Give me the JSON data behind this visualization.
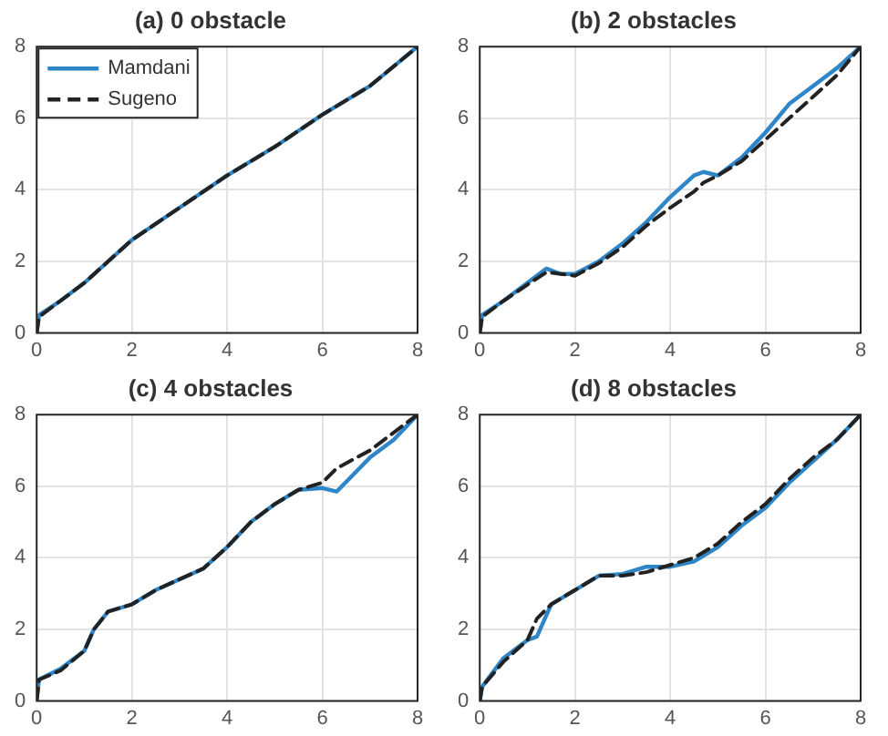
{
  "chart_data": [
    {
      "type": "line",
      "title": "(a) 0 obstacle",
      "x": [
        0,
        0.05,
        0.5,
        1,
        2,
        3,
        4,
        5,
        6,
        7,
        8
      ],
      "xlim": [
        0,
        8
      ],
      "xticks": [
        0,
        2,
        4,
        6,
        8
      ],
      "ylim": [
        0,
        8
      ],
      "yticks": [
        0,
        2,
        4,
        6,
        8
      ],
      "grid": true,
      "legend": "top left",
      "marker": "none",
      "series": [
        {
          "name": "Mamdani",
          "color": "#2e86c8",
          "line_style": "solid",
          "values": [
            0,
            0.5,
            0.9,
            1.4,
            2.6,
            3.5,
            4.4,
            5.2,
            6.1,
            6.9,
            8
          ]
        },
        {
          "name": "Sugeno",
          "color": "#222222",
          "line_style": "dashed",
          "values": [
            0,
            0.45,
            0.9,
            1.4,
            2.6,
            3.5,
            4.4,
            5.2,
            6.1,
            6.9,
            8
          ]
        }
      ]
    },
    {
      "type": "line",
      "title": "(b) 2 obstacles",
      "x": [
        0,
        0.05,
        0.5,
        1,
        1.4,
        1.7,
        2,
        2.5,
        3,
        3.5,
        4,
        4.5,
        4.7,
        5,
        5.5,
        6,
        6.5,
        7,
        7.5,
        8
      ],
      "xlim": [
        0,
        8
      ],
      "xticks": [
        0,
        2,
        4,
        6,
        8
      ],
      "ylim": [
        0,
        8
      ],
      "yticks": [
        0,
        2,
        4,
        6,
        8
      ],
      "grid": true,
      "marker": "none",
      "series": [
        {
          "color": "#2e86c8",
          "line_style": "solid",
          "values": [
            0,
            0.5,
            0.9,
            1.4,
            1.8,
            1.65,
            1.65,
            2.0,
            2.5,
            3.1,
            3.8,
            4.4,
            4.5,
            4.4,
            4.9,
            5.6,
            6.4,
            6.9,
            7.4,
            8
          ]
        },
        {
          "color": "#222222",
          "line_style": "dashed",
          "values": [
            0,
            0.45,
            0.9,
            1.35,
            1.7,
            1.65,
            1.6,
            1.95,
            2.4,
            3.0,
            3.5,
            3.95,
            4.2,
            4.4,
            4.8,
            5.4,
            6.0,
            6.6,
            7.2,
            8
          ]
        }
      ]
    },
    {
      "type": "line",
      "title": "(c) 4 obstacles",
      "x": [
        0,
        0.05,
        0.5,
        1,
        1.2,
        1.5,
        2,
        2.5,
        3,
        3.5,
        4,
        4.5,
        5,
        5.5,
        6,
        6.3,
        7,
        7.5,
        8
      ],
      "xlim": [
        0,
        8
      ],
      "xticks": [
        0,
        2,
        4,
        6,
        8
      ],
      "ylim": [
        0,
        8
      ],
      "yticks": [
        0,
        2,
        4,
        6,
        8
      ],
      "grid": true,
      "marker": "none",
      "series": [
        {
          "color": "#2e86c8",
          "line_style": "solid",
          "values": [
            0,
            0.6,
            0.9,
            1.4,
            2.0,
            2.5,
            2.7,
            3.1,
            3.4,
            3.7,
            4.3,
            5.0,
            5.5,
            5.9,
            5.95,
            5.85,
            6.8,
            7.3,
            8
          ]
        },
        {
          "color": "#222222",
          "line_style": "dashed",
          "values": [
            0,
            0.6,
            0.85,
            1.4,
            2.0,
            2.5,
            2.7,
            3.1,
            3.4,
            3.7,
            4.3,
            5.0,
            5.5,
            5.9,
            6.1,
            6.5,
            7.0,
            7.5,
            8
          ]
        }
      ]
    },
    {
      "type": "line",
      "title": "(d) 8 obstacles",
      "x": [
        0,
        0.05,
        0.5,
        1,
        1.2,
        1.5,
        2,
        2.5,
        3,
        3.5,
        4,
        4.5,
        5,
        5.5,
        6,
        6.5,
        7,
        7.5,
        8
      ],
      "xlim": [
        0,
        8
      ],
      "xticks": [
        0,
        2,
        4,
        6,
        8
      ],
      "ylim": [
        0,
        8
      ],
      "yticks": [
        0,
        2,
        4,
        6,
        8
      ],
      "grid": true,
      "marker": "none",
      "series": [
        {
          "color": "#2e86c8",
          "line_style": "solid",
          "values": [
            0,
            0.4,
            1.2,
            1.7,
            1.8,
            2.7,
            3.1,
            3.5,
            3.55,
            3.75,
            3.75,
            3.9,
            4.3,
            4.9,
            5.4,
            6.1,
            6.7,
            7.3,
            8
          ]
        },
        {
          "color": "#222222",
          "line_style": "dashed",
          "values": [
            0,
            0.4,
            1.1,
            1.7,
            2.3,
            2.7,
            3.1,
            3.5,
            3.5,
            3.6,
            3.8,
            4.0,
            4.4,
            5.0,
            5.5,
            6.2,
            6.8,
            7.3,
            8
          ]
        }
      ]
    }
  ]
}
